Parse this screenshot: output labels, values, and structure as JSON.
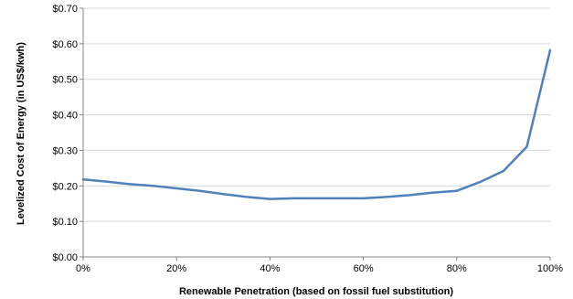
{
  "chart_data": {
    "type": "line",
    "title": "",
    "xlabel": "Renewable Penetration  (based on fossil fuel substitution)",
    "ylabel": "Levelized Cost of Energy  (in US$/kwh)",
    "xlim": [
      0,
      100
    ],
    "ylim": [
      0,
      0.7
    ],
    "x_ticks": [
      0,
      20,
      40,
      60,
      80,
      100
    ],
    "x_tick_labels": [
      "0%",
      "20%",
      "40%",
      "60%",
      "80%",
      "100%"
    ],
    "y_ticks": [
      0,
      0.1,
      0.2,
      0.3,
      0.4,
      0.5,
      0.6,
      0.7
    ],
    "y_tick_labels": [
      "$0.00",
      "$0.10",
      "$0.20",
      "$0.30",
      "$0.40",
      "$0.50",
      "$0.60",
      "$0.70"
    ],
    "grid": {
      "horizontal": true,
      "vertical": false
    },
    "legend": "none",
    "series": [
      {
        "color": "#4f81bd",
        "points": [
          {
            "x": 0,
            "y": 0.218
          },
          {
            "x": 5,
            "y": 0.212
          },
          {
            "x": 10,
            "y": 0.205
          },
          {
            "x": 15,
            "y": 0.2
          },
          {
            "x": 20,
            "y": 0.193
          },
          {
            "x": 25,
            "y": 0.186
          },
          {
            "x": 30,
            "y": 0.177
          },
          {
            "x": 35,
            "y": 0.169
          },
          {
            "x": 40,
            "y": 0.163
          },
          {
            "x": 45,
            "y": 0.165
          },
          {
            "x": 50,
            "y": 0.165
          },
          {
            "x": 55,
            "y": 0.165
          },
          {
            "x": 60,
            "y": 0.165
          },
          {
            "x": 65,
            "y": 0.169
          },
          {
            "x": 70,
            "y": 0.174
          },
          {
            "x": 75,
            "y": 0.181
          },
          {
            "x": 80,
            "y": 0.186
          },
          {
            "x": 85,
            "y": 0.211
          },
          {
            "x": 90,
            "y": 0.242
          },
          {
            "x": 95,
            "y": 0.31
          },
          {
            "x": 100,
            "y": 0.582
          }
        ]
      }
    ]
  }
}
